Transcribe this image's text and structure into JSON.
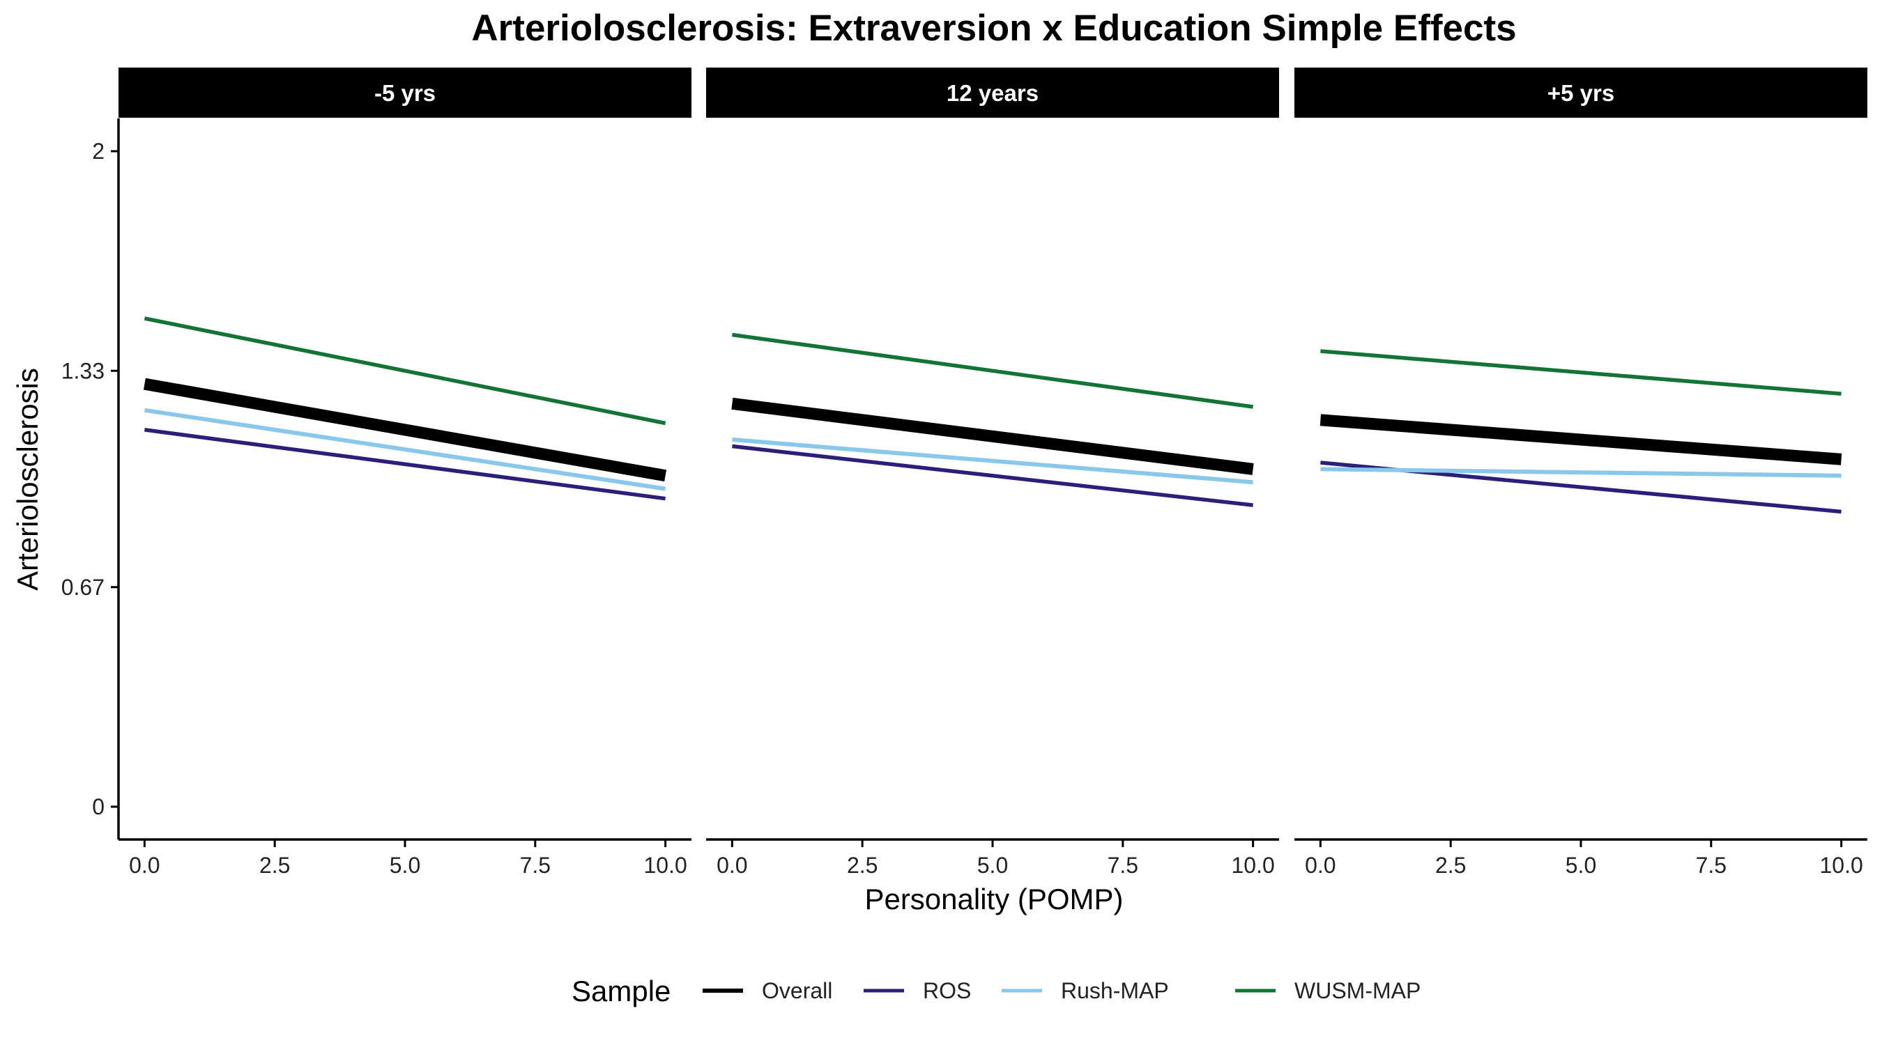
{
  "chart_data": {
    "type": "line",
    "title": "Arteriolosclerosis: Extraversion x Education Simple Effects",
    "xlabel": "Personality (POMP)",
    "ylabel": "Arteriolosclerosis",
    "xlim": [
      -0.5,
      10.5
    ],
    "ylim": [
      -0.1,
      2.1
    ],
    "x_ticks": [
      0,
      2.5,
      5,
      7.5,
      10
    ],
    "x_tick_labels": [
      "0.0",
      "2.5",
      "5.0",
      "7.5",
      "10.0"
    ],
    "y_ticks": [
      0,
      0.67,
      1.33,
      2
    ],
    "y_tick_labels": [
      "0",
      "0.67",
      "1.33",
      "2"
    ],
    "grid": false,
    "legend": {
      "title": "Sample",
      "placement": "bottom",
      "entries": [
        "Overall",
        "ROS",
        "Rush-MAP",
        "WUSM-MAP"
      ]
    },
    "series_colors": {
      "Overall": "#000000",
      "ROS": "#2b1f7a",
      "Rush-MAP": "#89c8ea",
      "WUSM-MAP": "#137436"
    },
    "panels": [
      {
        "label": "-5 yrs",
        "series": [
          {
            "name": "Overall",
            "x": [
              0,
              10
            ],
            "y": [
              1.29,
              1.01
            ]
          },
          {
            "name": "ROS",
            "x": [
              0,
              10
            ],
            "y": [
              1.15,
              0.94
            ]
          },
          {
            "name": "Rush-MAP",
            "x": [
              0,
              10
            ],
            "y": [
              1.21,
              0.97
            ]
          },
          {
            "name": "WUSM-MAP",
            "x": [
              0,
              10
            ],
            "y": [
              1.49,
              1.17
            ]
          }
        ]
      },
      {
        "label": "12 years",
        "series": [
          {
            "name": "Overall",
            "x": [
              0,
              10
            ],
            "y": [
              1.23,
              1.03
            ]
          },
          {
            "name": "ROS",
            "x": [
              0,
              10
            ],
            "y": [
              1.1,
              0.92
            ]
          },
          {
            "name": "Rush-MAP",
            "x": [
              0,
              10
            ],
            "y": [
              1.12,
              0.99
            ]
          },
          {
            "name": "WUSM-MAP",
            "x": [
              0,
              10
            ],
            "y": [
              1.44,
              1.22
            ]
          }
        ]
      },
      {
        "label": "+5 yrs",
        "series": [
          {
            "name": "Overall",
            "x": [
              0,
              10
            ],
            "y": [
              1.18,
              1.06
            ]
          },
          {
            "name": "ROS",
            "x": [
              0,
              10
            ],
            "y": [
              1.05,
              0.9
            ]
          },
          {
            "name": "Rush-MAP",
            "x": [
              0,
              10
            ],
            "y": [
              1.03,
              1.01
            ]
          },
          {
            "name": "WUSM-MAP",
            "x": [
              0,
              10
            ],
            "y": [
              1.39,
              1.26
            ]
          }
        ]
      }
    ]
  }
}
